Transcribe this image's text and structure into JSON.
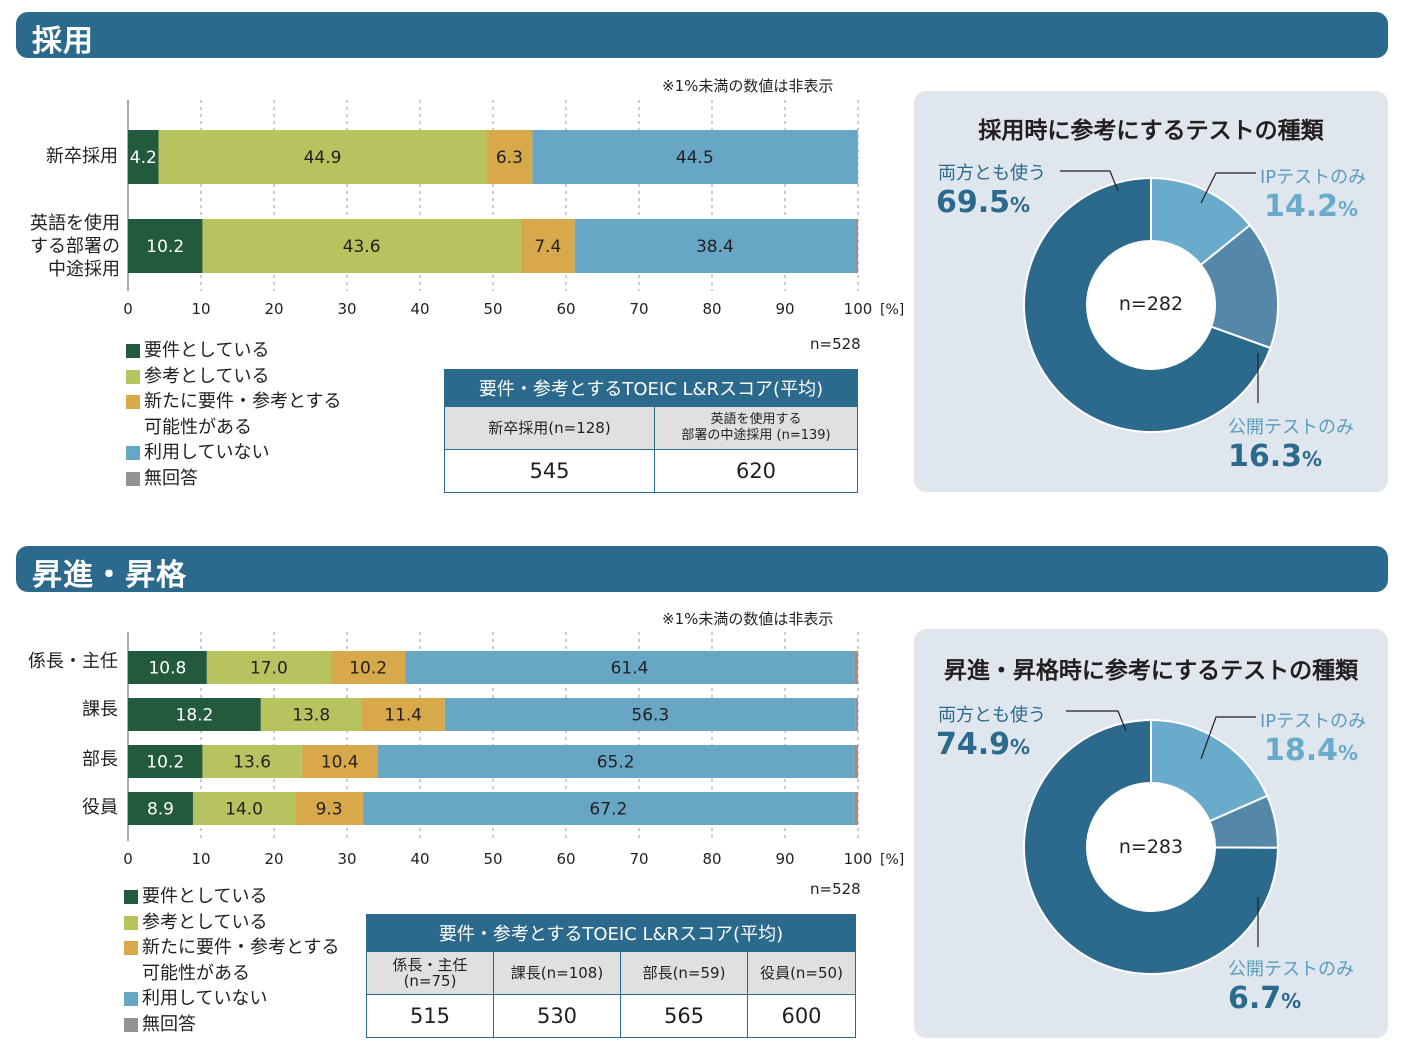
{
  "hiring": {
    "header": "採用",
    "note": "※1%未満の数値は非表示",
    "n_label": "n=528",
    "unit": "[%]",
    "legend": [
      "要件としている",
      "参考としている",
      "新たに要件・参考とする\n可能性がある",
      "利用していない",
      "無回答"
    ],
    "table": {
      "title": "要件・参考とするTOEIC L&Rスコア(平均)",
      "headers": [
        "新卒採用(n=128)",
        "英語を使用する\n部署の中途採用 (n=139)"
      ],
      "values": [
        "545",
        "620"
      ]
    },
    "donut": {
      "title": "採用時に参考にするテストの種類",
      "center": "n=282",
      "slices": [
        {
          "label": "IPテストのみ",
          "value": 14.2,
          "pct": "14.2",
          "color": "#6aaacb"
        },
        {
          "label": "公開テストのみ",
          "value": 16.3,
          "pct": "16.3",
          "color": "#5487a8"
        },
        {
          "label": "両方とも使う",
          "value": 69.5,
          "pct": "69.5",
          "color": "#2b6a8c"
        }
      ],
      "pct_unit": "%"
    }
  },
  "promotion": {
    "header": "昇進・昇格",
    "note": "※1%未満の数値は非表示",
    "n_label": "n=528",
    "unit": "[%]",
    "legend": [
      "要件としている",
      "参考としている",
      "新たに要件・参考とする\n可能性がある",
      "利用していない",
      "無回答"
    ],
    "table": {
      "title": "要件・参考とするTOEIC L&Rスコア(平均)",
      "headers": [
        "係長・主任(n=75)",
        "課長(n=108)",
        "部長(n=59)",
        "役員(n=50)"
      ],
      "values": [
        "515",
        "530",
        "565",
        "600"
      ]
    },
    "donut": {
      "title": "昇進・昇格時に参考にするテストの種類",
      "center": "n=283",
      "slices": [
        {
          "label": "IPテストのみ",
          "value": 18.4,
          "pct": "18.4",
          "color": "#6aaacb"
        },
        {
          "label": "公開テストのみ",
          "value": 6.7,
          "pct": "6.7",
          "color": "#5487a8"
        },
        {
          "label": "両方とも使う",
          "value": 74.9,
          "pct": "74.9",
          "color": "#2b6a8c"
        }
      ],
      "pct_unit": "%"
    }
  },
  "colors": {
    "require": "#235a3d",
    "reference": "#b6c35f",
    "possible": "#d8a94a",
    "notused": "#67a7c5",
    "noanswer": "#939393"
  },
  "chart_data": [
    {
      "type": "bar",
      "orientation": "horizontal",
      "stacked": true,
      "categories": [
        "新卒採用",
        "英語を使用\nする部署の\n中途採用"
      ],
      "series": [
        {
          "name": "要件としている",
          "values": [
            4.2,
            10.2
          ]
        },
        {
          "name": "参考としている",
          "values": [
            44.9,
            43.6
          ]
        },
        {
          "name": "新たに要件・参考とする可能性がある",
          "values": [
            6.3,
            7.4
          ]
        },
        {
          "name": "利用していない",
          "values": [
            44.5,
            38.4
          ]
        },
        {
          "name": "無回答",
          "values": [
            0.1,
            0.4
          ]
        }
      ],
      "xlim": [
        0,
        100
      ],
      "xticks": [
        0,
        10,
        20,
        30,
        40,
        50,
        60,
        70,
        80,
        90,
        100
      ],
      "grid": true,
      "legend": "bottom-left"
    },
    {
      "type": "bar",
      "orientation": "horizontal",
      "stacked": true,
      "categories": [
        "係長・主任",
        "課長",
        "部長",
        "役員"
      ],
      "series": [
        {
          "name": "要件としている",
          "values": [
            10.8,
            18.2,
            10.2,
            8.9
          ]
        },
        {
          "name": "参考としている",
          "values": [
            17.0,
            13.8,
            13.6,
            14.0
          ]
        },
        {
          "name": "新たに要件・参考とする可能性がある",
          "values": [
            10.2,
            11.4,
            10.4,
            9.3
          ]
        },
        {
          "name": "利用していない",
          "values": [
            61.4,
            56.3,
            65.2,
            67.2
          ]
        },
        {
          "name": "無回答",
          "values": [
            0.6,
            0.3,
            0.6,
            0.6
          ]
        }
      ],
      "xlim": [
        0,
        100
      ],
      "xticks": [
        0,
        10,
        20,
        30,
        40,
        50,
        60,
        70,
        80,
        90,
        100
      ],
      "grid": true,
      "legend": "bottom-left"
    },
    {
      "type": "pie",
      "title": "採用時に参考にするテストの種類",
      "labels": [
        "IPテストのみ",
        "公開テストのみ",
        "両方とも使う"
      ],
      "values": [
        14.2,
        16.3,
        69.5
      ]
    },
    {
      "type": "pie",
      "title": "昇進・昇格時に参考にするテストの種類",
      "labels": [
        "IPテストのみ",
        "公開テストのみ",
        "両方とも使う"
      ],
      "values": [
        18.4,
        6.7,
        74.9
      ]
    }
  ]
}
